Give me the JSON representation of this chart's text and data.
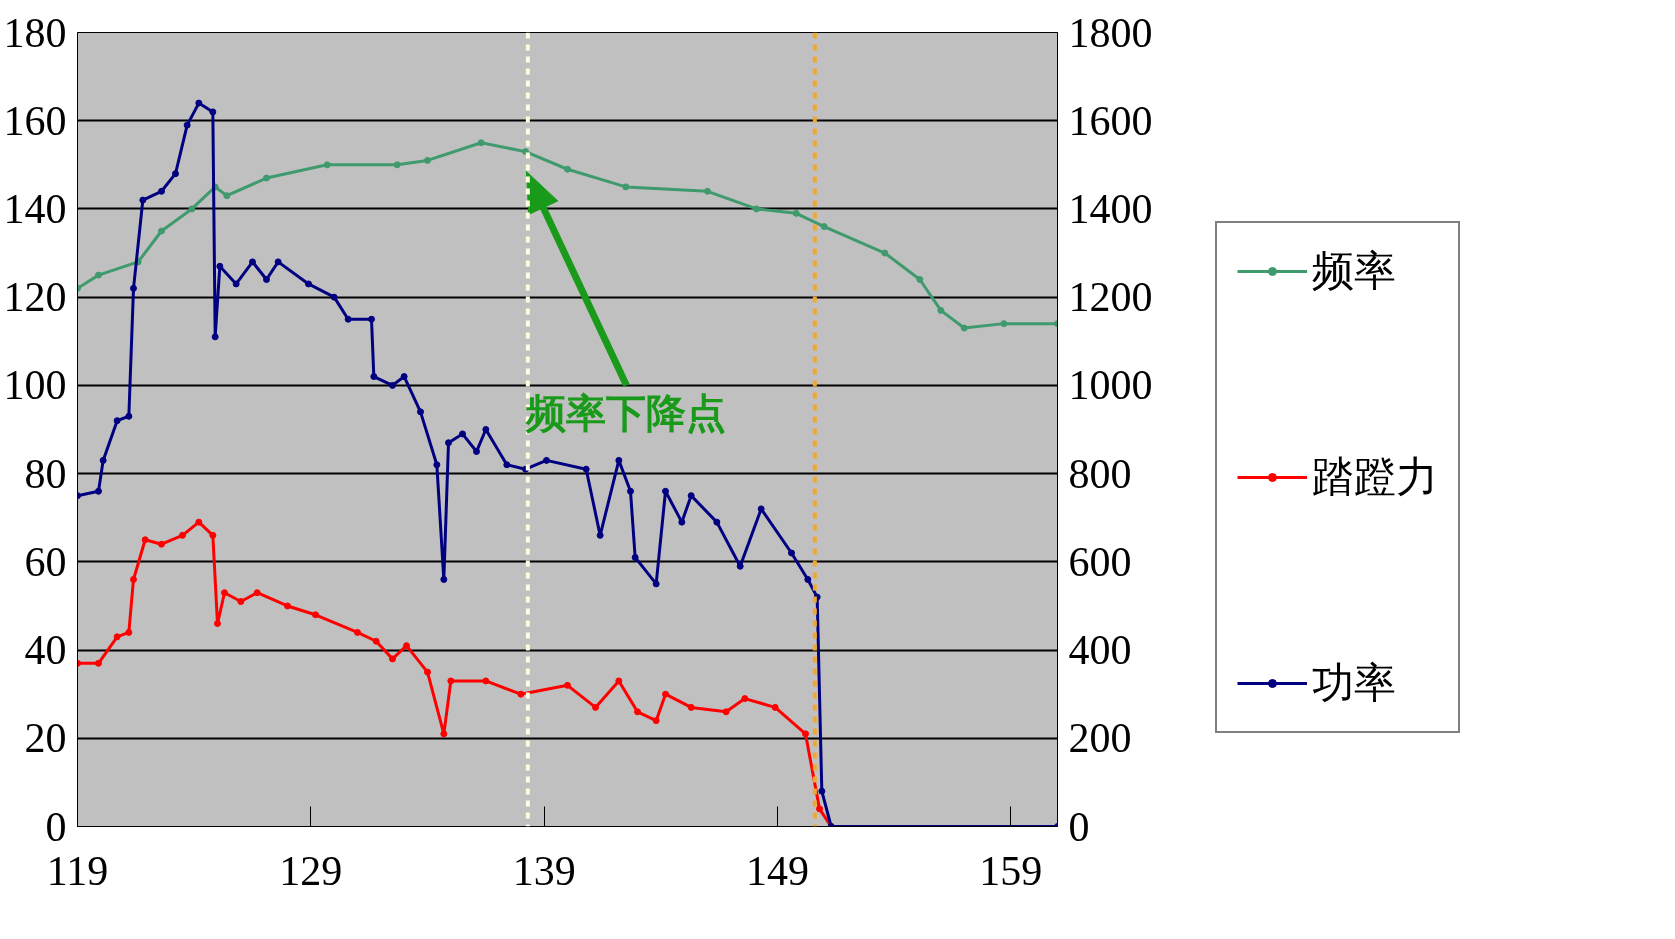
{
  "chart_data": {
    "type": "line",
    "xlim": [
      119,
      161
    ],
    "xticks": [
      119,
      129,
      139,
      149,
      159
    ],
    "ylim": [
      0,
      180
    ],
    "yticks": [
      0,
      20,
      40,
      60,
      80,
      100,
      120,
      140,
      160,
      180
    ],
    "y2lim": [
      0,
      1800
    ],
    "y2ticks": [
      0,
      200,
      400,
      600,
      800,
      1000,
      1200,
      1400,
      1600,
      1800
    ],
    "grid": "y",
    "legend": "right",
    "marker": "circle",
    "line_style": "solid",
    "series": [
      {
        "name": "频率",
        "color": "#3f9a6e",
        "x": [
          119,
          119.9,
          121.6,
          122.6,
          123.9,
          124.9,
          125.4,
          127.1,
          129.7,
          132.7,
          134,
          136.3,
          138.2,
          140,
          142.5,
          146,
          148.1,
          149.8,
          151,
          153.6,
          155.1,
          156,
          157,
          158.7,
          161
        ],
        "values": [
          122,
          125,
          128,
          135,
          140,
          145,
          143,
          147,
          150,
          150,
          151,
          155,
          153,
          149,
          145,
          144,
          140,
          139,
          136,
          130,
          124,
          117,
          113,
          114,
          114
        ]
      },
      {
        "name": "踏蹬力",
        "color": "#ff0000",
        "x": [
          119,
          119.9,
          120.7,
          121.2,
          121.4,
          121.9,
          122.6,
          123.5,
          124.2,
          124.8,
          125,
          125.3,
          126,
          126.7,
          128,
          129.2,
          131,
          131.8,
          132.5,
          133.1,
          134,
          134.7,
          135,
          136.5,
          138,
          140,
          141.2,
          142.2,
          143,
          143.8,
          144.2,
          145.3,
          146.8,
          147.6,
          148.9,
          150.2,
          150.8,
          151.3
        ],
        "values": [
          37,
          37,
          43,
          44,
          56,
          65,
          64,
          66,
          69,
          66,
          46,
          53,
          51,
          53,
          50,
          48,
          44,
          42,
          38,
          41,
          35,
          21,
          33,
          33,
          30,
          32,
          27,
          33,
          26,
          24,
          30,
          27,
          26,
          29,
          27,
          21,
          4,
          0
        ]
      },
      {
        "name": "功率",
        "color": "#000080",
        "axis": "y2",
        "x": [
          119,
          119.9,
          120.1,
          120.7,
          121.2,
          121.4,
          121.8,
          122.6,
          123.2,
          123.7,
          124.2,
          124.8,
          124.9,
          125.1,
          125.8,
          126.5,
          127.1,
          127.6,
          128.9,
          130,
          130.6,
          131.6,
          131.7,
          132.5,
          133,
          133.7,
          134.4,
          134.7,
          134.9,
          135.5,
          136.1,
          136.5,
          137.4,
          138.2,
          139.1,
          140.8,
          141.4,
          142.2,
          142.7,
          142.9,
          143.8,
          144.2,
          144.9,
          145.3,
          146.4,
          147.4,
          148.3,
          149.6,
          150.3,
          150.7,
          150.9,
          151.3,
          161
        ],
        "values": [
          750,
          760,
          830,
          920,
          930,
          1220,
          1420,
          1440,
          1480,
          1590,
          1640,
          1620,
          1110,
          1270,
          1230,
          1280,
          1240,
          1280,
          1230,
          1200,
          1150,
          1150,
          1020,
          1000,
          1020,
          940,
          820,
          560,
          870,
          890,
          850,
          900,
          820,
          810,
          830,
          810,
          660,
          830,
          760,
          610,
          550,
          760,
          690,
          750,
          690,
          590,
          720,
          620,
          560,
          520,
          80,
          0,
          0
        ]
      }
    ],
    "ref_lines": [
      {
        "axis": "x",
        "value": 138.3,
        "color": "#fffbe0",
        "line_style": "dashed"
      },
      {
        "axis": "x",
        "value": 150.6,
        "color": "#f0a830",
        "line_style": "dashed"
      }
    ],
    "annotations": [
      "频率下降点"
    ]
  }
}
